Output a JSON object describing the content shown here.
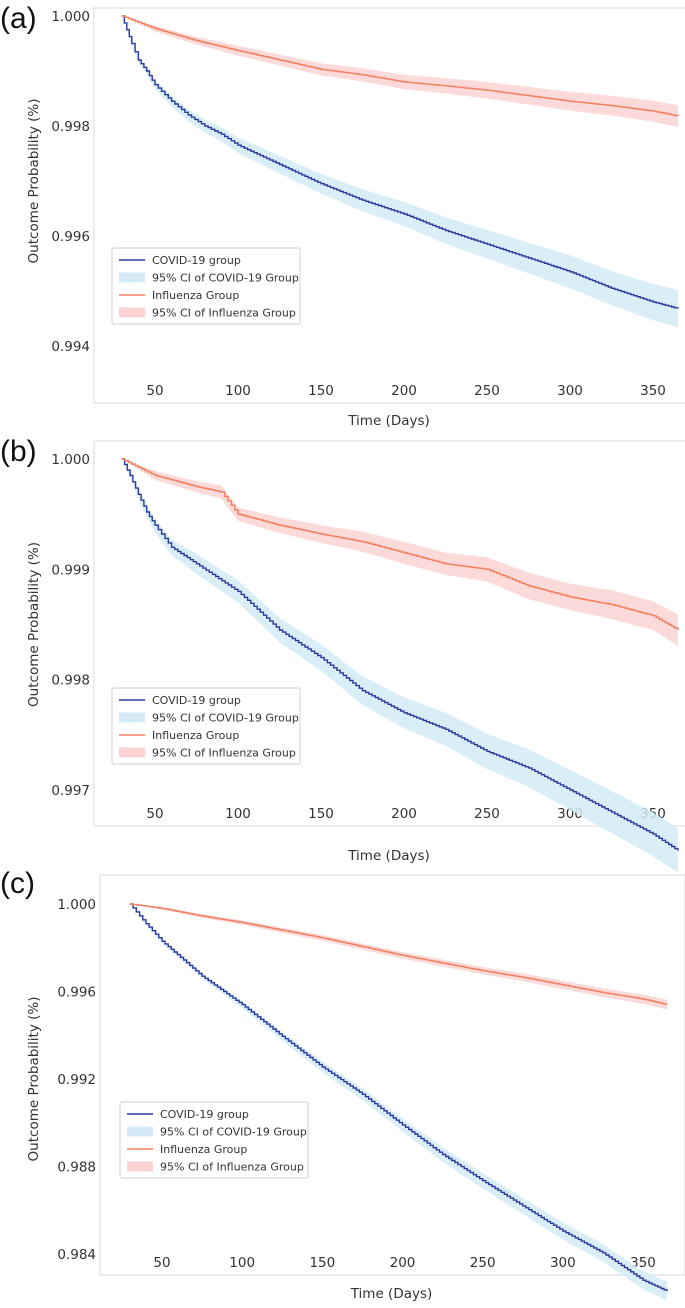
{
  "colors": {
    "covid_line": "#2b3a9e",
    "covid_band": "#d4ebf7",
    "flu_line": "#f2805f",
    "flu_band": "#fbd3d3"
  },
  "chart_data": [
    {
      "type": "line",
      "panel_label": "(a)",
      "xlabel": "Time (Days)",
      "ylabel": "Outcome Probability (%)",
      "xlim": [
        20,
        375
      ],
      "ylim": [
        0.994,
        1.0
      ],
      "xticks": [
        50,
        100,
        150,
        200,
        250,
        300,
        350
      ],
      "xtick_labels": [
        "50",
        "100",
        "150",
        "200",
        "250",
        "300",
        "350"
      ],
      "yticks": [
        1.0,
        0.998,
        0.996,
        0.994
      ],
      "ytick_labels": [
        "1.000",
        "0.998",
        "0.996",
        "0.994"
      ],
      "grid": false,
      "legend_position": "lower-left",
      "legend": [
        "COVID-19 group",
        "95% CI of COVID-19 Group",
        "Influenza Group",
        "95% CI of Influenza Group"
      ],
      "series": [
        {
          "name": "COVID-19 group",
          "x": [
            30,
            33,
            36,
            40,
            45,
            50,
            60,
            70,
            80,
            90,
            100,
            125,
            150,
            175,
            200,
            225,
            250,
            275,
            300,
            325,
            350,
            365
          ],
          "values": [
            1.0,
            0.99975,
            0.9995,
            0.9992,
            0.999,
            0.99875,
            0.99845,
            0.9982,
            0.998,
            0.99785,
            0.99765,
            0.9973,
            0.99695,
            0.99665,
            0.9964,
            0.9961,
            0.99585,
            0.9956,
            0.99535,
            0.99505,
            0.9948,
            0.99468
          ],
          "ci_half": [
            0,
            2e-05,
            4e-05,
            5e-05,
            7e-05,
            8e-05,
            0.0001,
            0.00011,
            0.00012,
            0.00013,
            0.00014,
            0.00016,
            0.00018,
            0.0002,
            0.00022,
            0.00024,
            0.00026,
            0.00028,
            0.0003,
            0.00031,
            0.00033,
            0.00034
          ]
        },
        {
          "name": "Influenza Group",
          "x": [
            30,
            50,
            75,
            100,
            125,
            150,
            175,
            200,
            225,
            250,
            275,
            300,
            325,
            350,
            365
          ],
          "values": [
            1.0,
            0.99977,
            0.99955,
            0.99937,
            0.9992,
            0.99903,
            0.99893,
            0.9988,
            0.99873,
            0.99865,
            0.99855,
            0.99845,
            0.99837,
            0.99827,
            0.99818
          ],
          "ci_half": [
            0,
            5e-05,
            7e-05,
            9e-05,
            0.0001,
            0.00011,
            0.00012,
            0.00013,
            0.00014,
            0.00015,
            0.00016,
            0.00017,
            0.00018,
            0.00019,
            0.0002
          ]
        }
      ]
    },
    {
      "type": "line",
      "panel_label": "(b)",
      "xlabel": "Time (Days)",
      "ylabel": "Outcome Probability (%)",
      "xlim": [
        20,
        375
      ],
      "ylim": [
        0.9965,
        1.0003
      ],
      "xticks": [
        50,
        100,
        150,
        200,
        250,
        300,
        350
      ],
      "xtick_labels": [
        "50",
        "100",
        "150",
        "200",
        "250",
        "300",
        "350"
      ],
      "yticks": [
        1.0,
        0.999,
        0.998,
        0.997
      ],
      "ytick_labels": [
        "1.000",
        "0.999",
        "0.998",
        "0.997"
      ],
      "grid": false,
      "legend_position": "lower-left",
      "legend": [
        "COVID-19 group",
        "95% CI of COVID-19 Group",
        "Influenza Group",
        "95% CI of Influenza Group"
      ],
      "series": [
        {
          "name": "COVID-19 group",
          "x": [
            30,
            35,
            40,
            45,
            50,
            60,
            75,
            100,
            125,
            150,
            175,
            200,
            225,
            250,
            275,
            300,
            325,
            350,
            365
          ],
          "values": [
            1.0,
            0.99985,
            0.99968,
            0.99952,
            0.9994,
            0.9992,
            0.99905,
            0.9988,
            0.99845,
            0.9982,
            0.9979,
            0.9977,
            0.99755,
            0.99735,
            0.9972,
            0.997,
            0.9968,
            0.9966,
            0.99645
          ],
          "ci_half": [
            0,
            2e-05,
            4e-05,
            5e-05,
            6e-05,
            7e-05,
            9e-05,
            0.0001,
            0.00011,
            0.00012,
            0.00013,
            0.00014,
            0.00015,
            0.00016,
            0.00017,
            0.00018,
            0.00019,
            0.0002,
            0.0002
          ]
        },
        {
          "name": "Influenza Group",
          "x": [
            30,
            50,
            75,
            90,
            100,
            125,
            150,
            175,
            200,
            225,
            250,
            275,
            300,
            325,
            350,
            365
          ],
          "values": [
            1.0,
            0.99985,
            0.99975,
            0.9997,
            0.9995,
            0.9994,
            0.99932,
            0.99925,
            0.99915,
            0.99905,
            0.999,
            0.99885,
            0.99875,
            0.99868,
            0.99858,
            0.99845
          ],
          "ci_half": [
            0,
            4e-05,
            5e-05,
            6e-05,
            6e-05,
            7e-05,
            8e-05,
            9e-05,
            0.0001,
            0.0001,
            0.00011,
            0.00012,
            0.00012,
            0.00013,
            0.00013,
            0.00014
          ]
        }
      ]
    },
    {
      "type": "line",
      "panel_label": "(c)",
      "xlabel": "Time (Days)",
      "ylabel": "Outcome Probability (%)",
      "xlim": [
        20,
        375
      ],
      "ylim": [
        0.9838,
        1.0007
      ],
      "xticks": [
        50,
        100,
        150,
        200,
        250,
        300,
        350
      ],
      "xtick_labels": [
        "50",
        "100",
        "150",
        "200",
        "250",
        "300",
        "350"
      ],
      "yticks": [
        1.0,
        0.996,
        0.992,
        0.988,
        0.984
      ],
      "ytick_labels": [
        "1.000",
        "0.996",
        "0.992",
        "0.988",
        "0.984"
      ],
      "grid": false,
      "legend_position": "lower-left",
      "legend": [
        "COVID-19 group",
        "95% CI of COVID-19 Group",
        "Influenza Group",
        "95% CI of Influenza Group"
      ],
      "series": [
        {
          "name": "COVID-19 group",
          "x": [
            30,
            40,
            50,
            75,
            100,
            125,
            150,
            175,
            200,
            225,
            250,
            275,
            300,
            325,
            350,
            365
          ],
          "values": [
            1.0,
            0.9991,
            0.9983,
            0.9967,
            0.9954,
            0.99395,
            0.99255,
            0.9913,
            0.9899,
            0.98855,
            0.98735,
            0.9862,
            0.98505,
            0.98405,
            0.9828,
            0.9823
          ],
          "ci_half": [
            0,
            5e-05,
            8e-05,
            0.00012,
            0.00016,
            0.0002,
            0.00024,
            0.00027,
            0.0003,
            0.00033,
            0.00035,
            0.00037,
            0.00039,
            0.0004,
            0.00042,
            0.00043
          ]
        },
        {
          "name": "Influenza Group",
          "x": [
            30,
            50,
            75,
            100,
            125,
            150,
            175,
            200,
            225,
            250,
            275,
            300,
            325,
            350,
            365
          ],
          "values": [
            1.0,
            0.9998,
            0.99945,
            0.99915,
            0.9988,
            0.99845,
            0.99805,
            0.99765,
            0.9973,
            0.99695,
            0.99665,
            0.9963,
            0.99595,
            0.99565,
            0.9954
          ],
          "ci_half": [
            0,
            6e-05,
            8e-05,
            0.0001,
            0.00012,
            0.00013,
            0.00014,
            0.00015,
            0.00016,
            0.00017,
            0.00018,
            0.00019,
            0.0002,
            0.00021,
            0.00022
          ]
        }
      ]
    }
  ]
}
